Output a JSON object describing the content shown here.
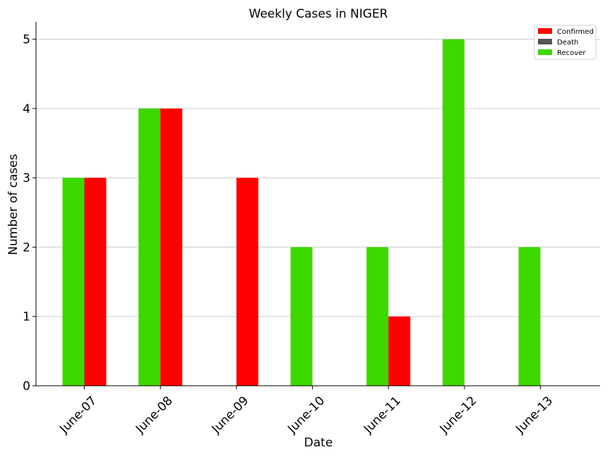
{
  "chart_data": {
    "type": "bar",
    "title": "Weekly Cases in NIGER",
    "xlabel": "Date",
    "ylabel": "Number of cases",
    "categories": [
      "June-07",
      "June-08",
      "June-09",
      "June-10",
      "June-11",
      "June-12",
      "June-13"
    ],
    "series": [
      {
        "name": "Confirmed",
        "color": "#ff0000",
        "values": [
          3,
          4,
          3,
          0,
          1,
          0,
          0
        ]
      },
      {
        "name": "Death",
        "color": "#555555",
        "values": [
          0,
          0,
          0,
          0,
          0,
          0,
          0
        ]
      },
      {
        "name": "Recover",
        "color": "#3dd800",
        "values": [
          3,
          4,
          0,
          2,
          2,
          5,
          2
        ]
      }
    ],
    "y_ticks": [
      0,
      1,
      2,
      3,
      4,
      5
    ],
    "ylim": [
      0,
      5.25
    ],
    "grid": "horizontal",
    "legend_position": "top-right"
  }
}
